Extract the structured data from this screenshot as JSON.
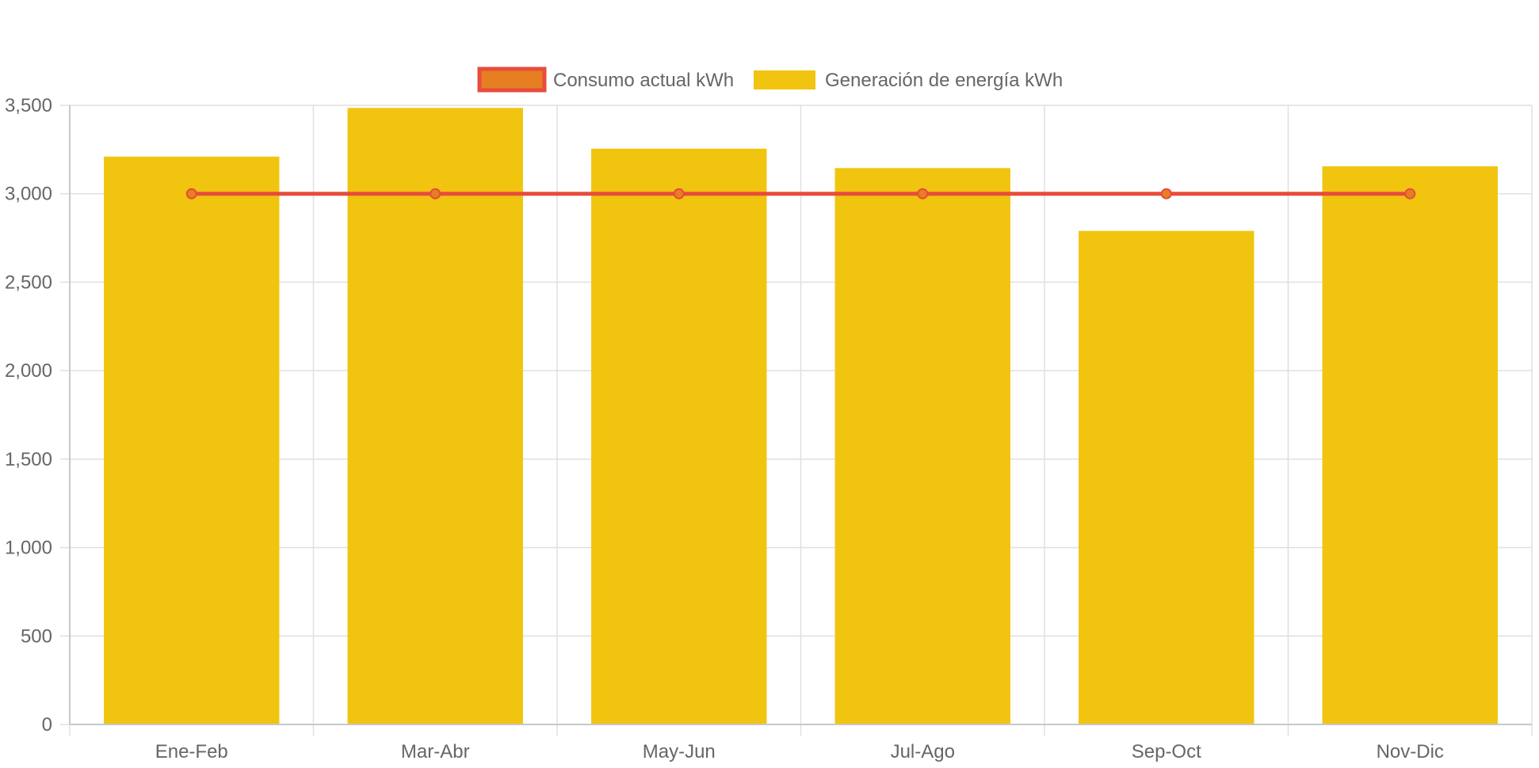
{
  "chart_data": {
    "type": "bar",
    "categories": [
      "Ene-Feb",
      "Mar-Abr",
      "May-Jun",
      "Jul-Ago",
      "Sep-Oct",
      "Nov-Dic"
    ],
    "series": [
      {
        "name": "Consumo actual kWh",
        "type": "line",
        "values": [
          3000,
          3000,
          3000,
          3000,
          3000,
          3000
        ],
        "color": "#E74C3C",
        "fill_color": "#E67E22"
      },
      {
        "name": "Generación de energía kWh",
        "type": "bar",
        "values": [
          3210,
          3485,
          3255,
          3145,
          2790,
          3155
        ],
        "color": "#F1C40F"
      }
    ],
    "y_ticks": [
      "0",
      "500",
      "1,000",
      "1,500",
      "2,000",
      "2,500",
      "3,000",
      "3,500"
    ],
    "ylim": [
      0,
      3500
    ],
    "grid": true,
    "legend_position": "top-center"
  }
}
